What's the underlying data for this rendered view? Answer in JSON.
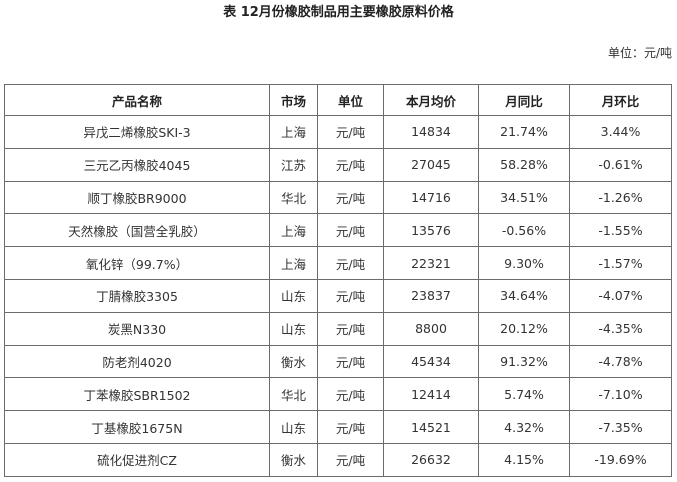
{
  "title": "表 12月份橡胶制品用主要橡胶原料价格",
  "unit_note": "单位：元/吨",
  "colors": {
    "positive": "#e8161b",
    "negative": "#1a8a1a",
    "border": "#6b6b6b"
  },
  "table": {
    "headers": [
      "产品名称",
      "市场",
      "单位",
      "本月均价",
      "月同比",
      "月环比"
    ],
    "rows": [
      {
        "name": "异戊二烯橡胶SKI-3",
        "market": "上海",
        "unit": "元/吨",
        "price": "14834",
        "yoy": "21.74%",
        "mom": "3.44%"
      },
      {
        "name": "三元乙丙橡胶4045",
        "market": "江苏",
        "unit": "元/吨",
        "price": "27045",
        "yoy": "58.28%",
        "mom": "-0.61%"
      },
      {
        "name": "顺丁橡胶BR9000",
        "market": "华北",
        "unit": "元/吨",
        "price": "14716",
        "yoy": "34.51%",
        "mom": "-1.26%"
      },
      {
        "name": "天然橡胶（国营全乳胶）",
        "market": "上海",
        "unit": "元/吨",
        "price": "13576",
        "yoy": "-0.56%",
        "mom": "-1.55%"
      },
      {
        "name": "氧化锌（99.7%）",
        "market": "上海",
        "unit": "元/吨",
        "price": "22321",
        "yoy": "9.30%",
        "mom": "-1.57%"
      },
      {
        "name": "丁腈橡胶3305",
        "market": "山东",
        "unit": "元/吨",
        "price": "23837",
        "yoy": "34.64%",
        "mom": "-4.07%"
      },
      {
        "name": "炭黑N330",
        "market": "山东",
        "unit": "元/吨",
        "price": "8800",
        "yoy": "20.12%",
        "mom": "-4.35%"
      },
      {
        "name": "防老剂4020",
        "market": "衡水",
        "unit": "元/吨",
        "price": "45434",
        "yoy": "91.32%",
        "mom": "-4.78%"
      },
      {
        "name": "丁苯橡胶SBR1502",
        "market": "华北",
        "unit": "元/吨",
        "price": "12414",
        "yoy": "5.74%",
        "mom": "-7.10%"
      },
      {
        "name": "丁基橡胶1675N",
        "market": "山东",
        "unit": "元/吨",
        "price": "14521",
        "yoy": "4.32%",
        "mom": "-7.35%"
      },
      {
        "name": "硫化促进剂CZ",
        "market": "衡水",
        "unit": "元/吨",
        "price": "26632",
        "yoy": "4.15%",
        "mom": "-19.69%"
      }
    ]
  }
}
